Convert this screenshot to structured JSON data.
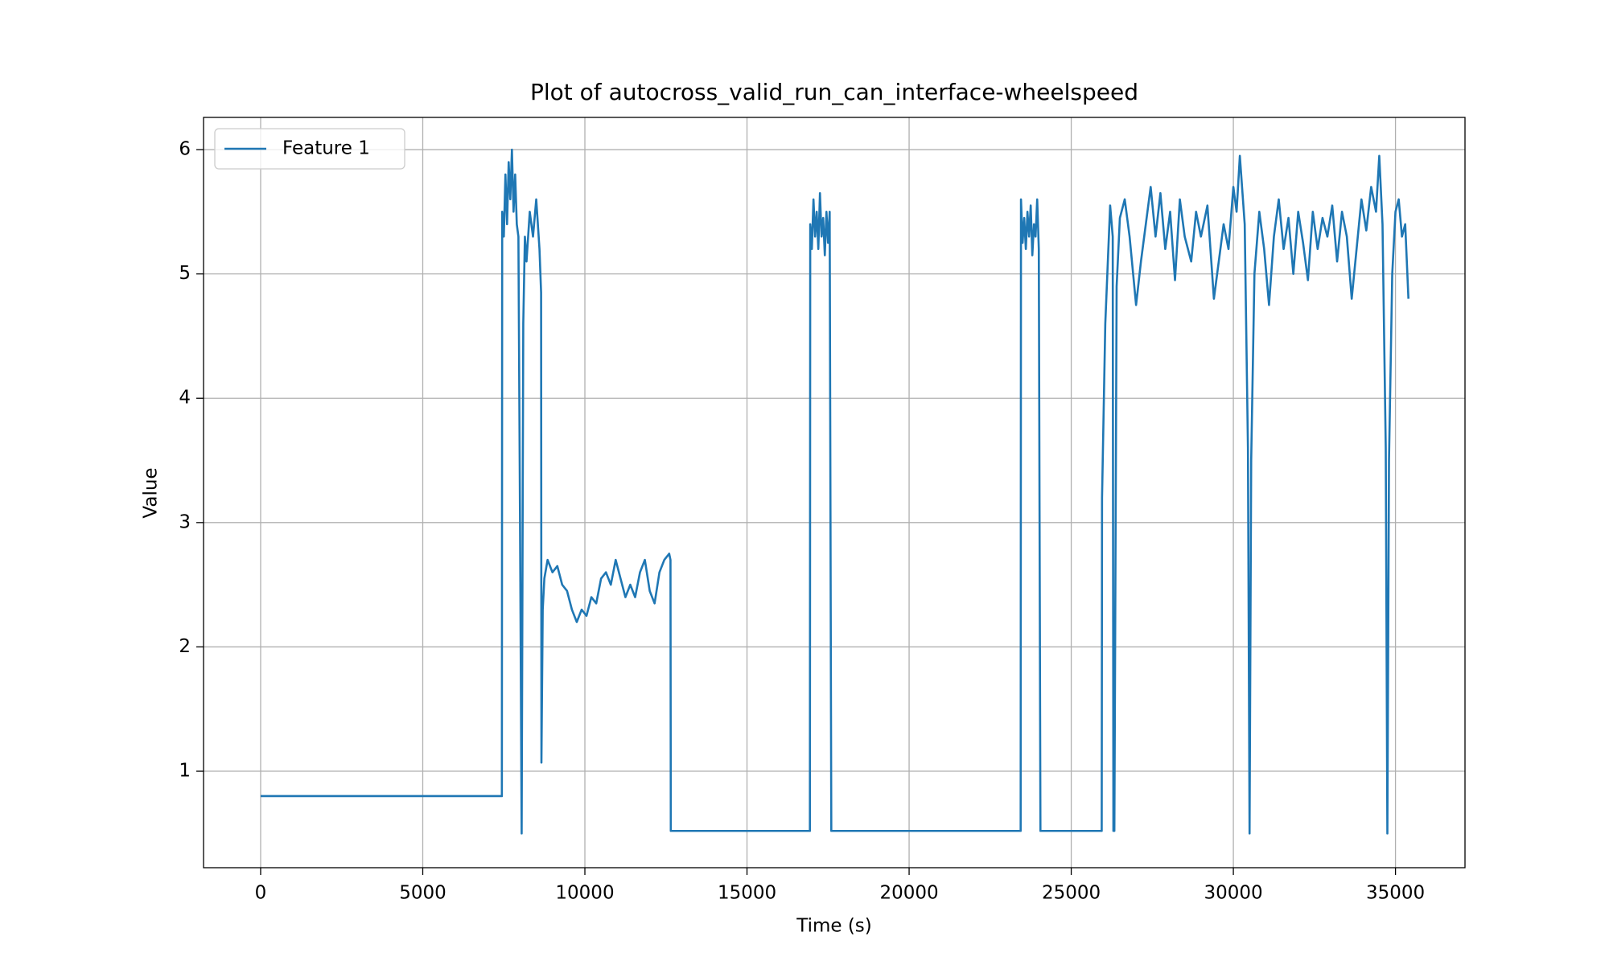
{
  "chart_data": {
    "type": "line",
    "title": "Plot of autocross_valid_run_can_interface-wheelspeed",
    "xlabel": "Time (s)",
    "ylabel": "Value",
    "xlim": [
      -1761,
      37144
    ],
    "ylim": [
      0.224,
      6.259
    ],
    "xticks": [
      0,
      5000,
      10000,
      15000,
      20000,
      25000,
      30000,
      35000
    ],
    "yticks": [
      1,
      2,
      3,
      4,
      5,
      6
    ],
    "grid": true,
    "legend": "upper left",
    "x": [
      0,
      7440,
      7450,
      7500,
      7550,
      7600,
      7650,
      7700,
      7750,
      7800,
      7850,
      7900,
      7950,
      8000,
      8050,
      8100,
      8150,
      8200,
      8300,
      8400,
      8500,
      8600,
      8650,
      8660,
      8700,
      8750,
      8850,
      9000,
      9150,
      9300,
      9450,
      9600,
      9750,
      9900,
      10050,
      10200,
      10350,
      10500,
      10650,
      10800,
      10950,
      11100,
      11250,
      11400,
      11550,
      11700,
      11850,
      12000,
      12150,
      12300,
      12450,
      12600,
      12640,
      12650,
      16940,
      16950,
      17000,
      17050,
      17100,
      17150,
      17200,
      17250,
      17300,
      17350,
      17400,
      17450,
      17500,
      17550,
      17600,
      23440,
      23450,
      23500,
      23550,
      23600,
      23650,
      23700,
      23750,
      23800,
      23850,
      23900,
      23950,
      24000,
      24050,
      25940,
      25950,
      26050,
      26200,
      26280,
      26300,
      26330,
      26400,
      26500,
      26650,
      26800,
      27000,
      27150,
      27300,
      27450,
      27600,
      27750,
      27900,
      28050,
      28200,
      28350,
      28500,
      28700,
      28850,
      29000,
      29200,
      29400,
      29550,
      29700,
      29850,
      30000,
      30100,
      30200,
      30350,
      30450,
      30500,
      30550,
      30650,
      30800,
      30950,
      31100,
      31250,
      31400,
      31550,
      31700,
      31850,
      32000,
      32150,
      32300,
      32450,
      32600,
      32750,
      32900,
      33050,
      33200,
      33350,
      33500,
      33650,
      33800,
      33950,
      34100,
      34250,
      34400,
      34500,
      34600,
      34700,
      34750,
      34800,
      34900,
      35000,
      35100,
      35200,
      35300,
      35400
    ],
    "series": [
      {
        "name": "Feature 1",
        "color": "#1f77b4",
        "values": [
          0.8,
          0.8,
          5.5,
          5.3,
          5.8,
          5.4,
          5.9,
          5.6,
          6.0,
          5.5,
          5.8,
          5.4,
          5.3,
          3.0,
          0.5,
          4.6,
          5.3,
          5.1,
          5.5,
          5.3,
          5.6,
          5.2,
          4.85,
          1.07,
          2.3,
          2.55,
          2.7,
          2.6,
          2.65,
          2.5,
          2.45,
          2.3,
          2.2,
          2.3,
          2.25,
          2.4,
          2.35,
          2.55,
          2.6,
          2.5,
          2.7,
          2.55,
          2.4,
          2.5,
          2.4,
          2.6,
          2.7,
          2.45,
          2.35,
          2.6,
          2.7,
          2.75,
          2.7,
          0.52,
          0.52,
          5.4,
          5.2,
          5.6,
          5.3,
          5.5,
          5.2,
          5.65,
          5.3,
          5.45,
          5.15,
          5.5,
          5.25,
          5.5,
          0.52,
          0.52,
          5.6,
          5.25,
          5.45,
          5.2,
          5.5,
          5.3,
          5.55,
          5.15,
          5.4,
          5.3,
          5.6,
          5.2,
          0.52,
          0.52,
          3.2,
          4.6,
          5.55,
          5.3,
          0.52,
          0.52,
          4.9,
          5.45,
          5.6,
          5.3,
          4.75,
          5.1,
          5.4,
          5.7,
          5.3,
          5.65,
          5.2,
          5.5,
          4.95,
          5.6,
          5.3,
          5.1,
          5.5,
          5.3,
          5.55,
          4.8,
          5.1,
          5.4,
          5.2,
          5.7,
          5.5,
          5.95,
          5.4,
          3.6,
          0.5,
          3.5,
          5.0,
          5.5,
          5.2,
          4.75,
          5.3,
          5.6,
          5.2,
          5.45,
          5.0,
          5.5,
          5.25,
          4.95,
          5.5,
          5.2,
          5.45,
          5.3,
          5.55,
          5.1,
          5.5,
          5.3,
          4.8,
          5.2,
          5.6,
          5.35,
          5.7,
          5.5,
          5.95,
          5.4,
          3.6,
          0.5,
          3.5,
          5.0,
          5.5,
          5.6,
          5.3,
          5.4,
          4.8
        ]
      }
    ]
  }
}
